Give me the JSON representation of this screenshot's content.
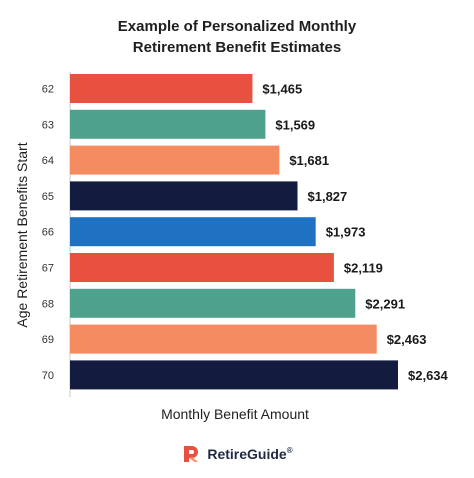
{
  "chart_data": {
    "type": "bar",
    "orientation": "horizontal",
    "title": "Example of Personalized Monthly Retirement Benefit Estimates",
    "title_lines": [
      "Example of Personalized Monthly",
      "Retirement Benefit Estimates"
    ],
    "xlabel": "Monthly Benefit Amount",
    "ylabel": "Age Retirement Benefits Start",
    "categories": [
      "62",
      "63",
      "64",
      "65",
      "66",
      "67",
      "68",
      "69",
      "70"
    ],
    "values": [
      1465,
      1569,
      1681,
      1827,
      1973,
      2119,
      2291,
      2463,
      2634
    ],
    "data_labels": [
      "$1,465",
      "$1,569",
      "$1,681",
      "$1,827",
      "$1,973",
      "$2,119",
      "$2,291",
      "$2,463",
      "$2,634"
    ],
    "bar_colors": [
      "#e8503f",
      "#4ea28d",
      "#f58b61",
      "#131b3f",
      "#1f72c1",
      "#e8503f",
      "#4ea28d",
      "#f58b61",
      "#131b3f"
    ],
    "xlim": [
      0,
      2634
    ],
    "grid": false,
    "legend": "none"
  },
  "brand": {
    "name": "RetireGuide",
    "registered": "®",
    "colors": [
      "#e8503f",
      "#f58b61"
    ]
  }
}
